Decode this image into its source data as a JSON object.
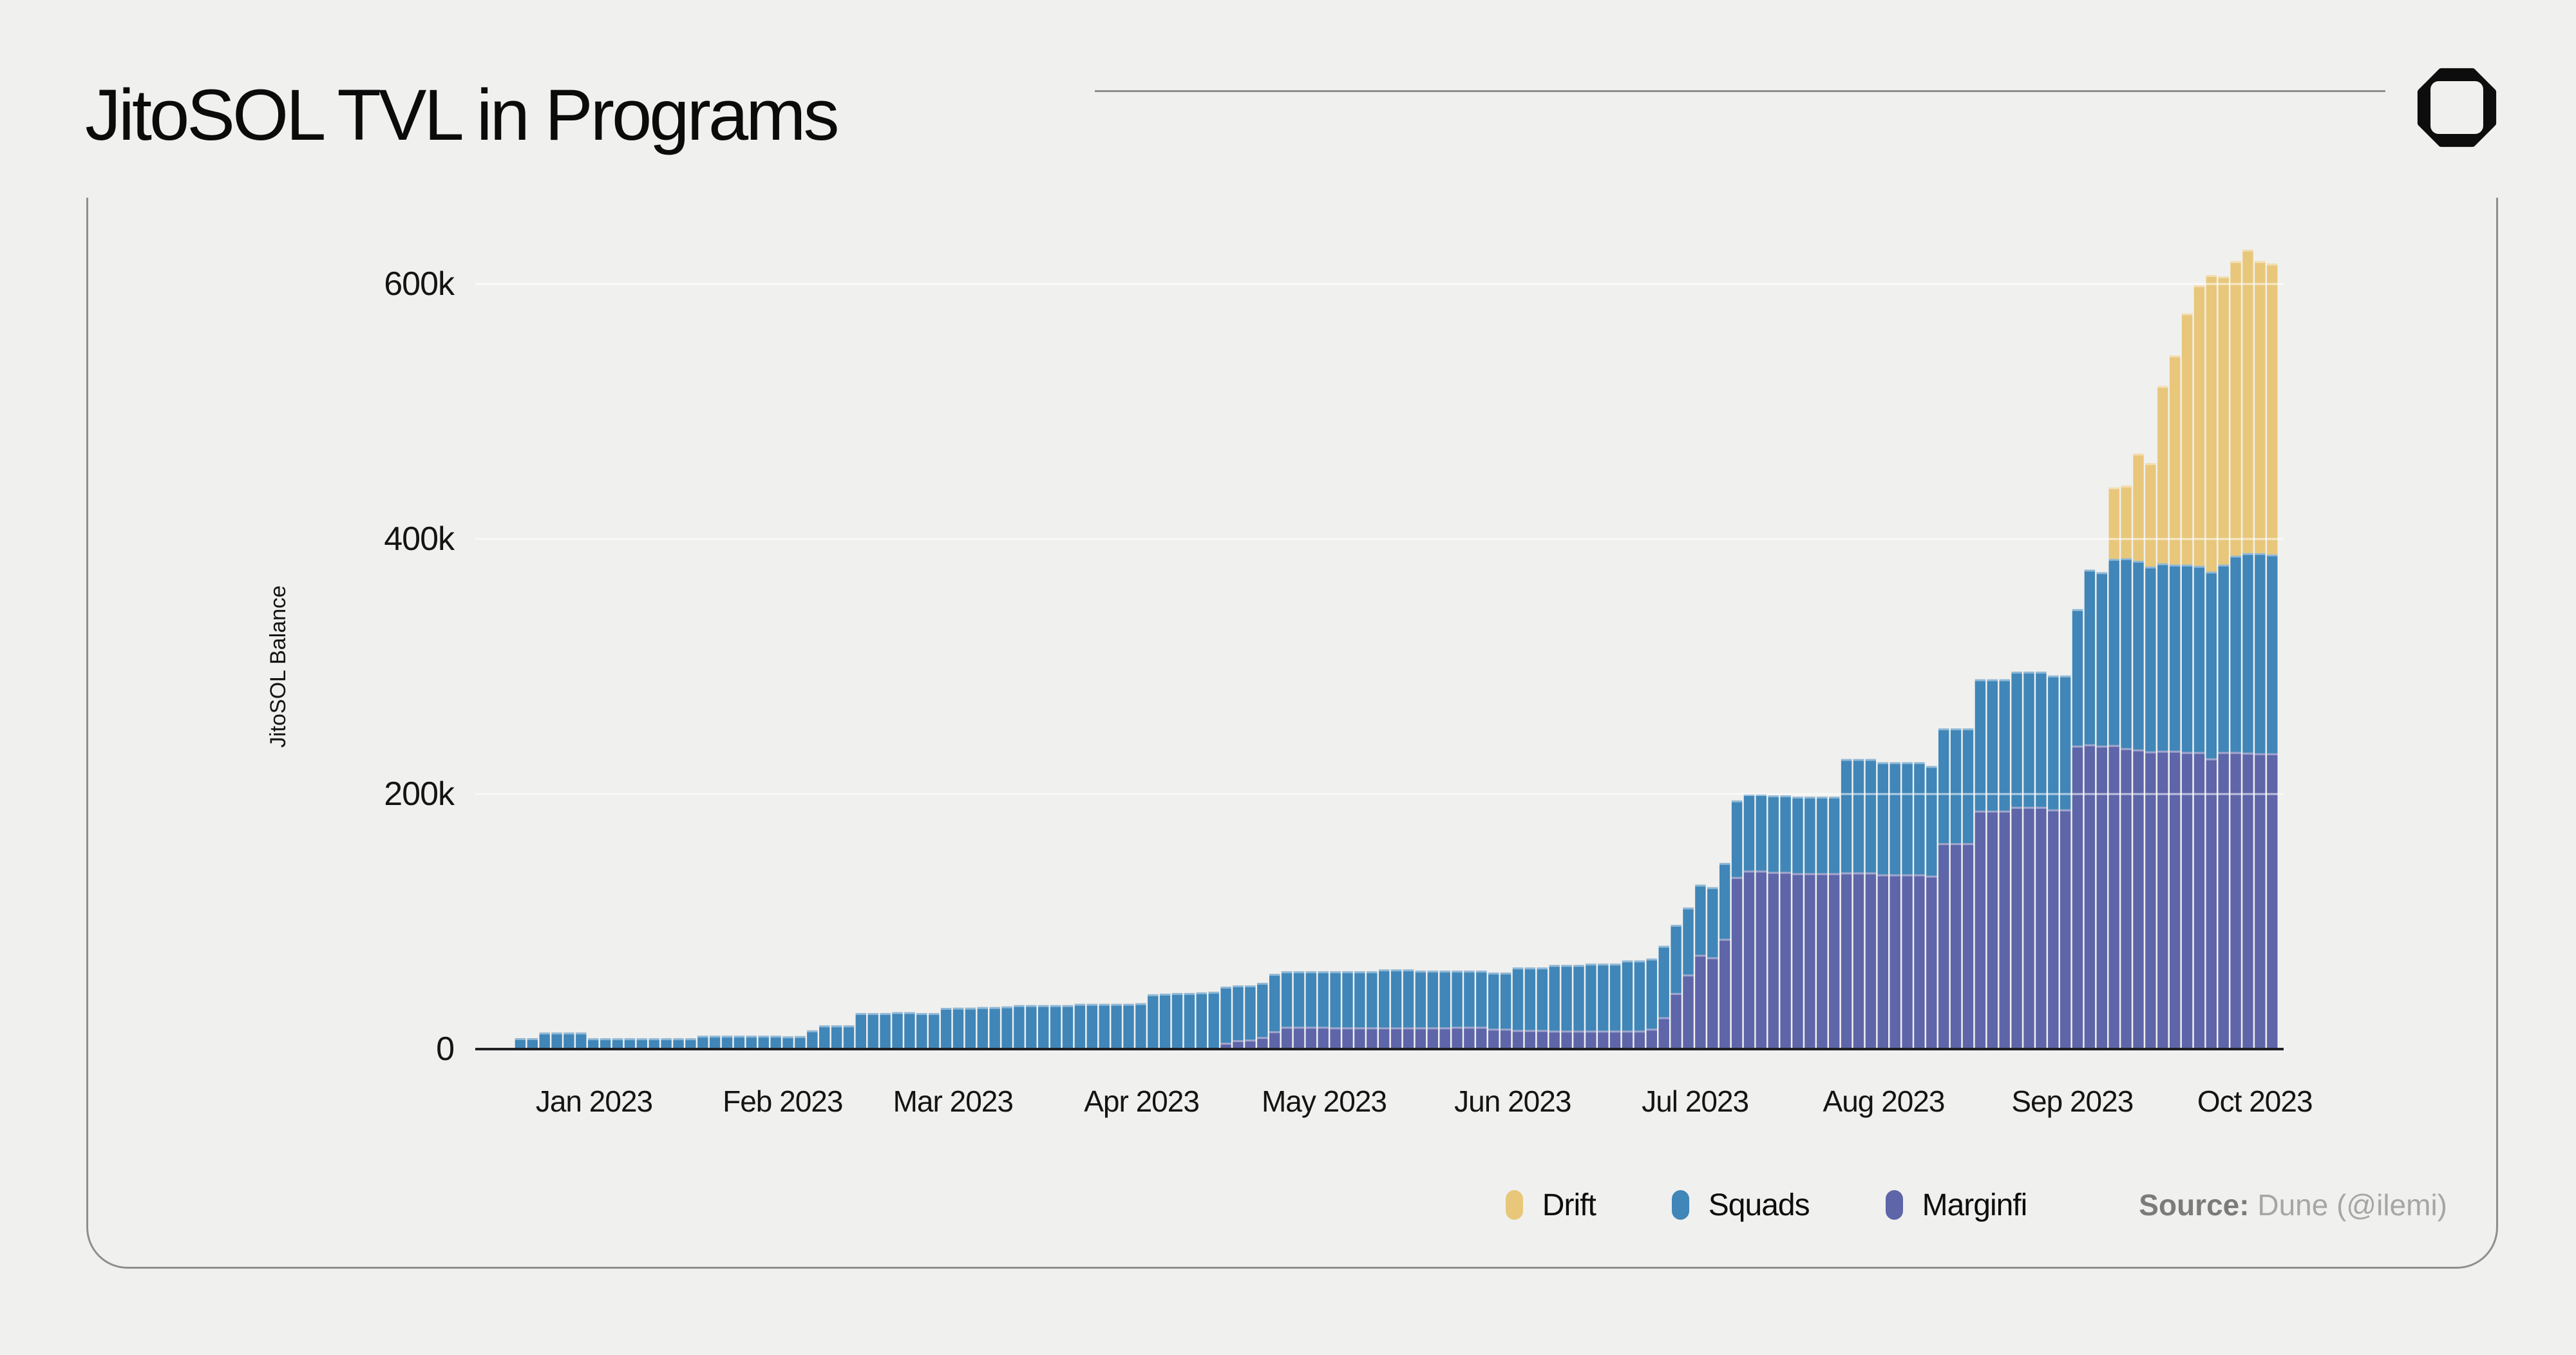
{
  "page": {
    "title": "JitoSOL TVL in Programs",
    "source_label": "Source:",
    "source_value": " Dune (@ilemi)"
  },
  "chart_data": {
    "type": "bar",
    "stacked": true,
    "title": "JitoSOL TVL in Programs",
    "xlabel": "",
    "ylabel": "JitoSOL Balance",
    "unit": "thousands of JitoSOL",
    "ylim": [
      0,
      660
    ],
    "grid": "horizontal, drawn as light lines over bars",
    "legend_position": "bottom-right",
    "legend_order": [
      "Drift",
      "Squads",
      "Marginfi"
    ],
    "y_ticks": [
      {
        "label": "0",
        "value": 0
      },
      {
        "label": "200k",
        "value": 200
      },
      {
        "label": "400k",
        "value": 400
      },
      {
        "label": "600k",
        "value": 600
      }
    ],
    "x_ticks": [
      {
        "label": "Jan 2023",
        "day": 19
      },
      {
        "label": "Feb 2023",
        "day": 50
      },
      {
        "label": "Mar 2023",
        "day": 78
      },
      {
        "label": "Apr 2023",
        "day": 109
      },
      {
        "label": "May 2023",
        "day": 139
      },
      {
        "label": "Jun 2023",
        "day": 170
      },
      {
        "label": "Jul 2023",
        "day": 200
      },
      {
        "label": "Aug 2023",
        "day": 231
      },
      {
        "label": "Sep 2023",
        "day": 262
      },
      {
        "label": "Oct 2023",
        "day": 292
      }
    ],
    "start_date": "2022-12-13",
    "end_date": "2023-10-03",
    "interval_days": 2,
    "n_points": 148,
    "series": [
      {
        "name": "Marginfi",
        "color": "#5e65a8",
        "values": [
          0,
          0,
          0,
          0,
          0,
          0,
          0,
          0,
          0,
          0,
          0,
          0,
          0,
          0,
          0,
          0,
          0,
          0,
          0,
          0,
          0,
          0,
          0,
          0,
          0,
          0,
          0,
          0,
          0,
          0,
          0,
          0,
          0,
          0,
          0,
          0,
          0,
          0,
          0,
          0,
          0,
          0,
          0,
          0,
          0,
          0,
          0,
          0,
          0,
          0,
          0,
          0,
          0,
          0,
          0,
          0,
          0,
          0,
          0,
          0,
          0.5,
          5,
          7,
          7.5,
          9.5,
          14,
          17.5,
          17.5,
          17.5,
          17.5,
          17,
          17,
          17,
          17,
          17,
          17,
          17,
          17,
          17,
          17,
          17.5,
          17.5,
          17.5,
          16,
          16,
          15,
          15,
          15,
          14.5,
          14.5,
          14.5,
          14.5,
          14.5,
          14.5,
          14.5,
          14.5,
          16,
          25,
          44,
          58.5,
          74,
          72,
          86.5,
          135,
          140,
          140,
          139,
          139,
          138,
          138,
          138,
          138,
          138.5,
          138.5,
          138.5,
          137,
          137,
          137,
          137,
          136,
          161.5,
          161.5,
          161.5,
          187,
          187,
          187,
          190,
          190,
          190,
          188,
          188,
          238,
          239,
          238,
          238.5,
          236,
          235,
          233.5,
          234,
          234,
          233,
          233,
          228,
          233,
          233,
          232.5,
          232,
          232
        ]
      },
      {
        "name": "Squads",
        "color": "#4086b8",
        "values": [
          0.5,
          0.5,
          0.5,
          8.6,
          8.6,
          13,
          13,
          13,
          13,
          8.5,
          8.5,
          8.5,
          8.5,
          8.5,
          8.5,
          8.5,
          8.5,
          8.5,
          10.5,
          10.5,
          10.5,
          10.5,
          10.5,
          10.5,
          10.5,
          10,
          10.2,
          14.7,
          18.6,
          18.6,
          18.6,
          28.3,
          28.3,
          28.3,
          29,
          29,
          28.3,
          28.3,
          32.3,
          32.5,
          32.5,
          33,
          33,
          33.5,
          34.5,
          34.5,
          34.5,
          34.5,
          34.5,
          35.5,
          35.5,
          35.5,
          35.5,
          35.5,
          36,
          43,
          43.5,
          44,
          44,
          44.5,
          44.5,
          44,
          43,
          42.5,
          42.5,
          45,
          43.5,
          43.5,
          43.5,
          43.5,
          44,
          44,
          44,
          44,
          45.5,
          45.5,
          45.5,
          44.5,
          44.5,
          44.5,
          44,
          44,
          44,
          44,
          44,
          49,
          49,
          49,
          51.5,
          51.5,
          51.5,
          52.5,
          52.5,
          52.5,
          55,
          55,
          55,
          56,
          53.5,
          52.5,
          55,
          55,
          59.5,
          60,
          60,
          60,
          60,
          60,
          60,
          60,
          60,
          60,
          89,
          89,
          89,
          88,
          88,
          88,
          88,
          86,
          90,
          90,
          90,
          103,
          103,
          103,
          106,
          106,
          106,
          105,
          105,
          107,
          137,
          136,
          146,
          149,
          148,
          145,
          147,
          146,
          147,
          146,
          146.5,
          147,
          154,
          156.5,
          157,
          156
        ]
      },
      {
        "name": "Drift",
        "color": "#e8c77b",
        "values": [
          0,
          0,
          0,
          0,
          0,
          0,
          0,
          0,
          0,
          0,
          0,
          0,
          0,
          0,
          0,
          0,
          0,
          0,
          0,
          0,
          0,
          0,
          0,
          0,
          0,
          0,
          0,
          0,
          0,
          0,
          0,
          0,
          0,
          0,
          0,
          0,
          0,
          0,
          0,
          0,
          0,
          0,
          0,
          0,
          0,
          0,
          0,
          0,
          0,
          0,
          0,
          0,
          0,
          0,
          0,
          0,
          0,
          0,
          0,
          0,
          0,
          0,
          0,
          0,
          0,
          0,
          0,
          0,
          0,
          0,
          0,
          0,
          0,
          0,
          0,
          0,
          0,
          0,
          0,
          0,
          0,
          0,
          0,
          0,
          0,
          0,
          0,
          0,
          0,
          0,
          0,
          0,
          0,
          0,
          0,
          0,
          0,
          0,
          0,
          0,
          0,
          0,
          0,
          0,
          0,
          0,
          0,
          0,
          0,
          0,
          0,
          0,
          0,
          0,
          0,
          0,
          0,
          0,
          0,
          0,
          0,
          0,
          0,
          0,
          0,
          0,
          0,
          0,
          0,
          0,
          0,
          0,
          0,
          0,
          56,
          57,
          84,
          81,
          139,
          164,
          197,
          220,
          232.5,
          226,
          231,
          238,
          229,
          228
        ]
      }
    ]
  }
}
